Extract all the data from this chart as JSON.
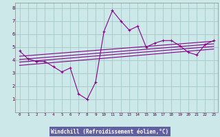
{
  "xlabel": "Windchill (Refroidissement éolien,°C)",
  "background_color": "#cce8e8",
  "plot_bg_color": "#cce8e8",
  "grid_color": "#aacccc",
  "line_color": "#880088",
  "xlabel_bg": "#6060a0",
  "xlabel_fg": "#ffffff",
  "xlim": [
    -0.5,
    23.5
  ],
  "ylim": [
    0,
    8.4
  ],
  "xticks": [
    0,
    1,
    2,
    3,
    4,
    5,
    6,
    7,
    8,
    9,
    10,
    11,
    12,
    13,
    14,
    15,
    16,
    17,
    18,
    19,
    20,
    21,
    22,
    23
  ],
  "yticks": [
    1,
    2,
    3,
    4,
    5,
    6,
    7,
    8
  ],
  "main_x": [
    0,
    1,
    2,
    3,
    4,
    5,
    6,
    7,
    8,
    9,
    10,
    11,
    12,
    13,
    14,
    15,
    16,
    17,
    18,
    19,
    20,
    21,
    22,
    23
  ],
  "main_y": [
    4.7,
    4.1,
    3.9,
    3.9,
    3.5,
    3.1,
    3.4,
    1.4,
    1.0,
    2.3,
    6.2,
    7.8,
    7.0,
    6.3,
    6.6,
    5.0,
    5.3,
    5.5,
    5.5,
    5.1,
    4.6,
    4.4,
    5.2,
    5.5
  ],
  "reg_lines": [
    {
      "x": [
        0,
        23
      ],
      "y": [
        4.3,
        5.45
      ]
    },
    {
      "x": [
        0,
        23
      ],
      "y": [
        4.05,
        5.25
      ]
    },
    {
      "x": [
        0,
        23
      ],
      "y": [
        3.85,
        5.05
      ]
    },
    {
      "x": [
        0,
        23
      ],
      "y": [
        3.6,
        4.85
      ]
    }
  ]
}
